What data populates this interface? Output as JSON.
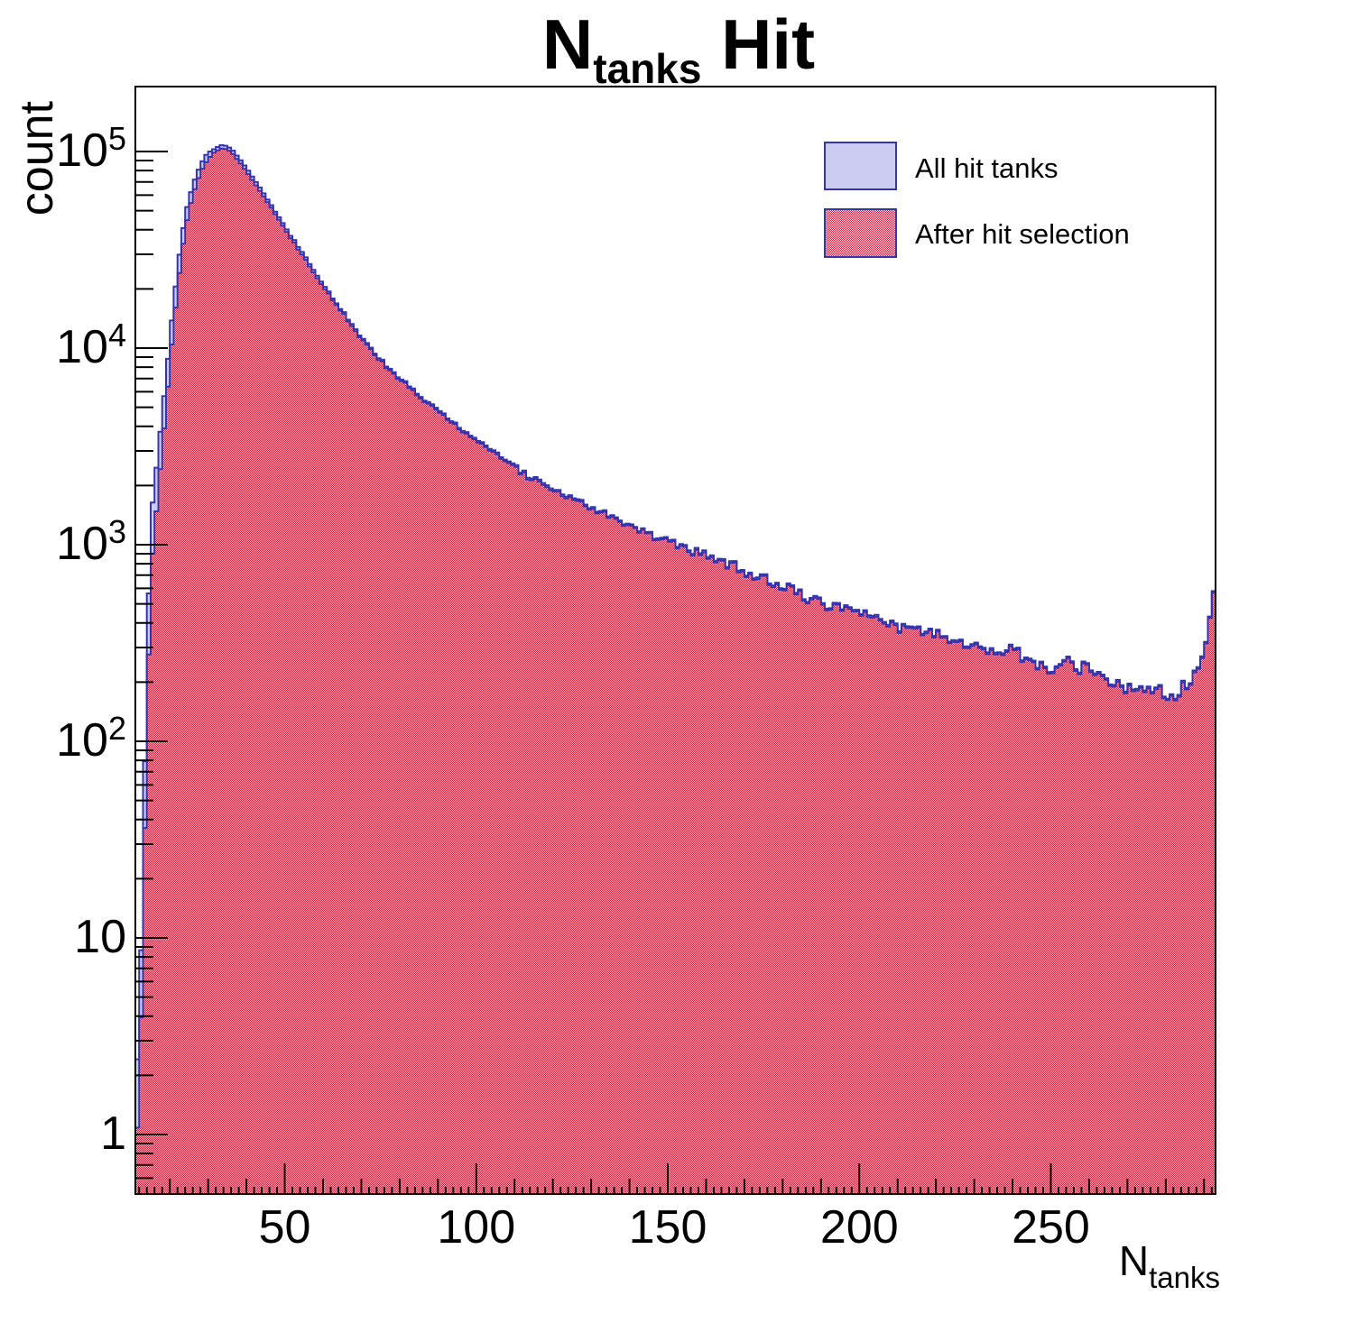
{
  "title": {
    "main": "N",
    "sub": "tanks",
    "rest": " Hit"
  },
  "axes": {
    "y_title": "count",
    "x_title_main": "N",
    "x_title_sub": "tanks",
    "x_tick_labels": [
      "50",
      "100",
      "150",
      "200",
      "250"
    ],
    "y_tick_labels": [
      {
        "base": "1",
        "exp": "",
        "value": 1
      },
      {
        "base": "10",
        "exp": "",
        "value": 10
      },
      {
        "base": "10",
        "exp": "2",
        "value": 100
      },
      {
        "base": "10",
        "exp": "3",
        "value": 1000
      },
      {
        "base": "10",
        "exp": "4",
        "value": 10000
      },
      {
        "base": "10",
        "exp": "5",
        "value": 100000
      }
    ]
  },
  "legend": {
    "entries": [
      {
        "label": "All hit tanks",
        "style": "solid"
      },
      {
        "label": "After hit selection",
        "style": "hatch"
      }
    ]
  },
  "colors": {
    "hist_line": "#3434ac",
    "hatch_red": "#c9233c",
    "solid_lavender": "#ccccf2",
    "frame": "#000000"
  },
  "chart_data": {
    "type": "bar",
    "subtype": "step-histogram-overlay",
    "title": "N_tanks Hit",
    "xlabel": "N_tanks",
    "ylabel": "count",
    "xlim": [
      11,
      293
    ],
    "ylim": [
      0.5,
      215000
    ],
    "ylog": true,
    "bin_width": 1,
    "grid": false,
    "legend_position": "top-right",
    "envelope_x": [
      11,
      12,
      13,
      14,
      15,
      16,
      17,
      18,
      19,
      20,
      21,
      22,
      23,
      24,
      25,
      26,
      27,
      28,
      29,
      30,
      31,
      32,
      33,
      34,
      35,
      36,
      37,
      38,
      40,
      42,
      44,
      46,
      48,
      50,
      53,
      56,
      60,
      64,
      68,
      71,
      75,
      79,
      86,
      94,
      103,
      113,
      122,
      132,
      141,
      150,
      159,
      165,
      172,
      180,
      188,
      195,
      203,
      211,
      219,
      227,
      235,
      240,
      246,
      251,
      254,
      259,
      264,
      268,
      273,
      277,
      281,
      283,
      285,
      288,
      290,
      291,
      292
    ],
    "series": [
      {
        "name": "All hit tanks",
        "values": [
          2,
          2.9,
          26,
          242,
          1330,
          2000,
          3040,
          4650,
          6960,
          11200,
          16900,
          25200,
          35400,
          47200,
          57500,
          67200,
          77300,
          85000,
          92700,
          99200,
          100400,
          104500,
          107100,
          108200,
          106600,
          103000,
          98300,
          93100,
          82200,
          72300,
          63400,
          55100,
          47900,
          41700,
          34000,
          27800,
          21400,
          16500,
          12900,
          10800,
          8770,
          7340,
          5610,
          4180,
          3160,
          2310,
          1870,
          1510,
          1220,
          1050,
          900,
          816,
          719,
          627,
          525,
          474,
          439,
          383,
          362,
          316,
          283,
          296,
          245,
          226,
          255,
          237,
          208,
          194,
          186,
          184,
          173,
          180,
          195,
          232,
          311,
          316,
          581
        ]
      },
      {
        "name": "After hit selection",
        "values": [
          0.9,
          1.3,
          12,
          110,
          700,
          1150,
          1900,
          3100,
          4900,
          8300,
          13000,
          20000,
          29000,
          40000,
          50000,
          60000,
          69000,
          78000,
          85000,
          91000,
          96500,
          100500,
          103000,
          104000,
          102500,
          99000,
          94500,
          89500,
          79000,
          69500,
          61000,
          53500,
          46500,
          40500,
          33000,
          27000,
          20800,
          16200,
          12600,
          10600,
          8600,
          7200,
          5500,
          4100,
          3100,
          2260,
          1830,
          1480,
          1200,
          1030,
          880,
          800,
          705,
          615,
          515,
          465,
          430,
          375,
          355,
          310,
          277,
          290,
          240,
          222,
          250,
          232,
          204,
          190,
          182,
          180,
          170,
          176,
          191,
          227,
          305,
          310,
          570
        ]
      }
    ]
  }
}
